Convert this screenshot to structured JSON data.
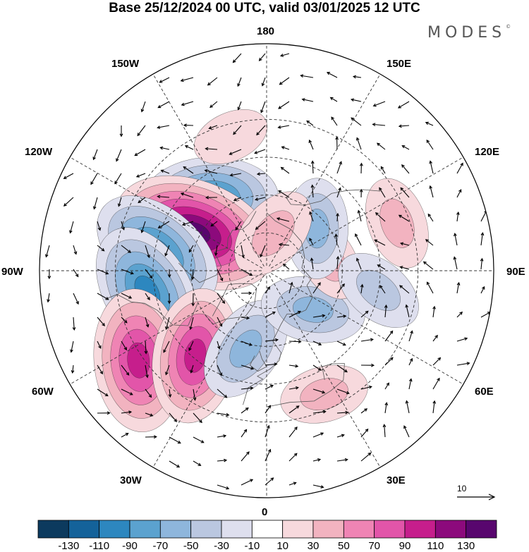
{
  "title": "Base 25/12/2024 00 UTC, valid 03/01/2025 12 UTC",
  "brand": {
    "name": "MODES",
    "mark": "©"
  },
  "longitude_labels": {
    "lon_180": "180",
    "lon_150e": "150E",
    "lon_120e": "120E",
    "lon_90e": "90E",
    "lon_60e": "60E",
    "lon_30e": "30E",
    "lon_0": "0",
    "lon_30w": "30W",
    "lon_60w": "60W",
    "lon_90w": "90W",
    "lon_120w": "120W",
    "lon_150w": "150W"
  },
  "reference_vector": {
    "value": "10"
  },
  "colorbar": {
    "colors": [
      "#0c3a5e",
      "#14629a",
      "#2d87bf",
      "#5ba2cf",
      "#8eb6dc",
      "#bac7e0",
      "#dedfee",
      "#ffffff",
      "#f7d9dd",
      "#f2b3c0",
      "#ef84b4",
      "#e255a9",
      "#c61e8c",
      "#8c0a7c",
      "#58066e"
    ],
    "ticks": [
      "-130",
      "-110",
      "-90",
      "-70",
      "-50",
      "-30",
      "-10",
      "10",
      "30",
      "50",
      "70",
      "90",
      "110",
      "130"
    ]
  },
  "anomaly_centers": [
    {
      "lon": -142,
      "lat": 54,
      "value": -95
    },
    {
      "lon": -118,
      "lat": 58,
      "value": 135
    },
    {
      "lon": -100,
      "lat": 46,
      "value": -100
    },
    {
      "lon": -80,
      "lat": 42,
      "value": -100
    },
    {
      "lon": -55,
      "lat": 28,
      "value": 105
    },
    {
      "lon": -40,
      "lat": 46,
      "value": 95
    },
    {
      "lon": -15,
      "lat": 58,
      "value": -60
    },
    {
      "lon": 50,
      "lat": 66,
      "value": -55
    },
    {
      "lon": 100,
      "lat": 65,
      "value": 30
    },
    {
      "lon": 130,
      "lat": 64,
      "value": -50
    },
    {
      "lon": 170,
      "lat": 75,
      "value": 45
    },
    {
      "lon": 80,
      "lat": 45,
      "value": -40
    },
    {
      "lon": 25,
      "lat": 36,
      "value": 35
    },
    {
      "lon": 110,
      "lat": 35,
      "value": 40
    },
    {
      "lon": -165,
      "lat": 35,
      "value": 20
    }
  ]
}
